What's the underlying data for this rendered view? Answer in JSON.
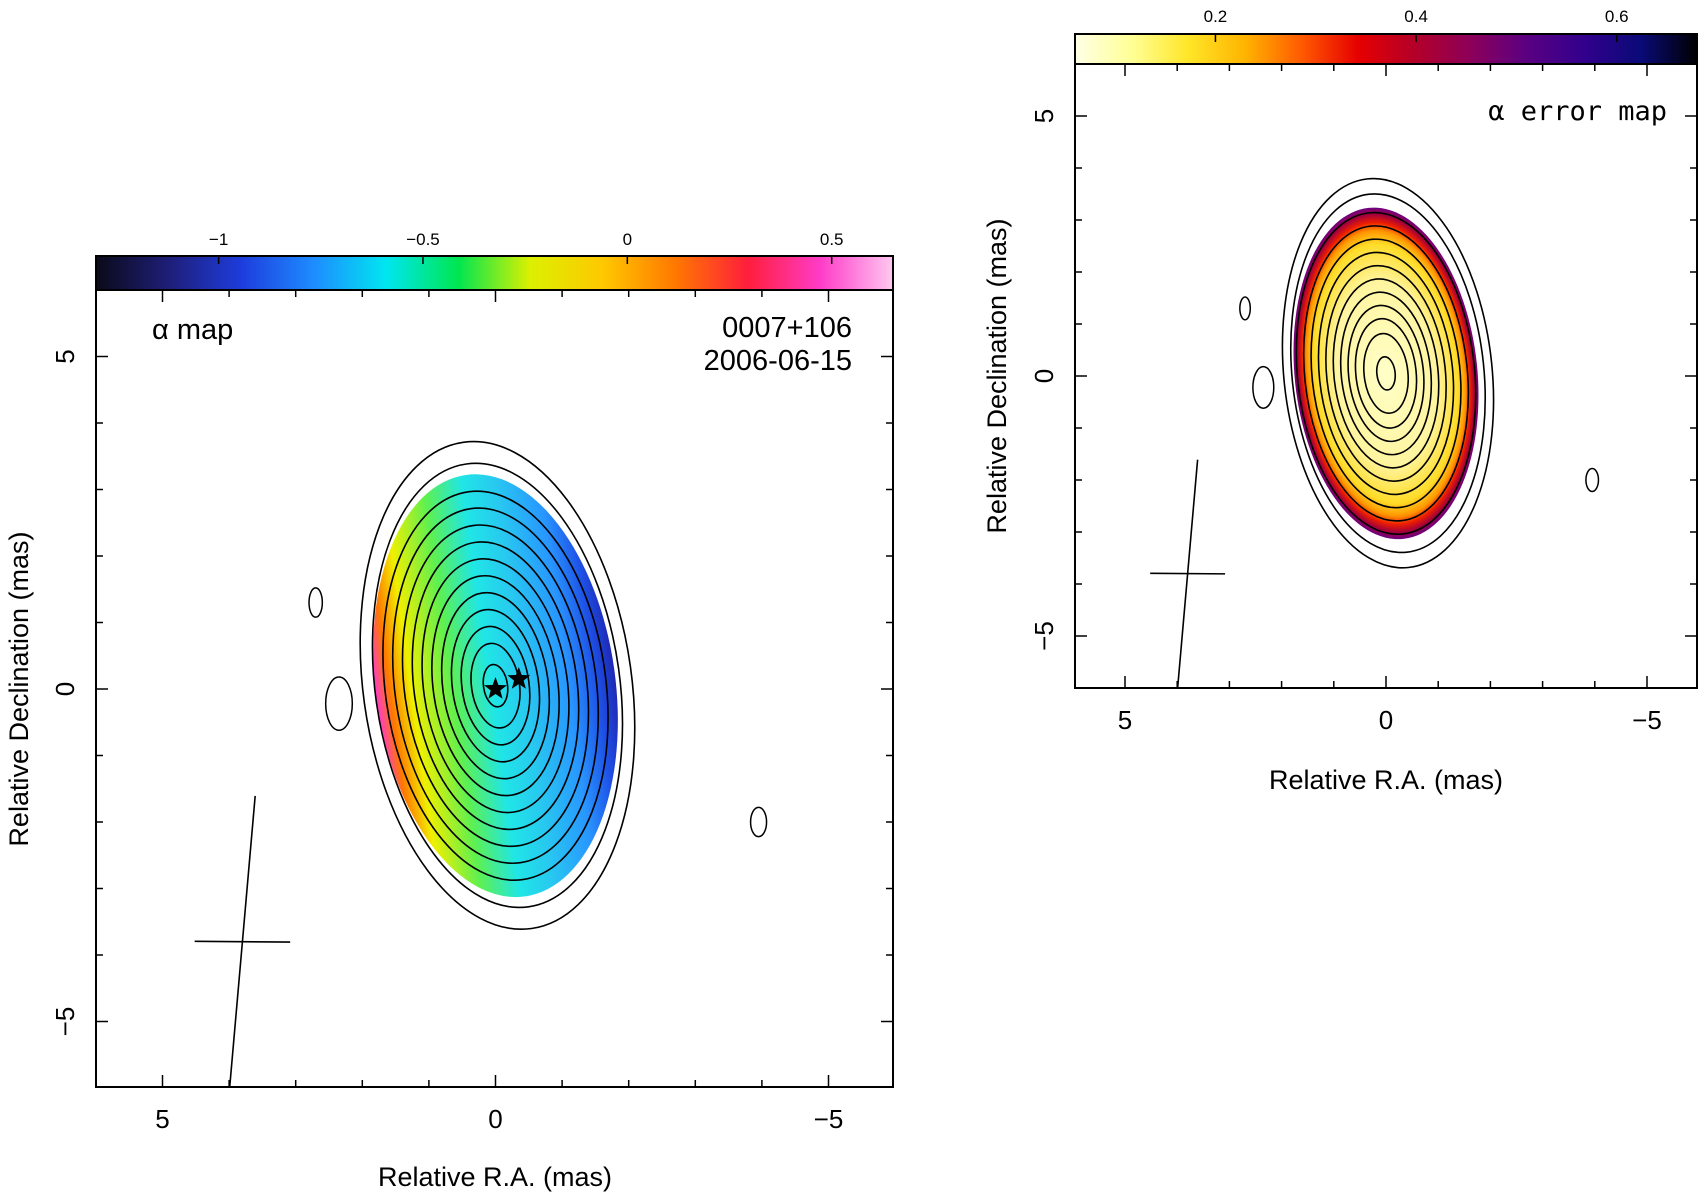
{
  "chart_data": [
    {
      "type": "heatmap",
      "title": "α map",
      "annotation_lines": [
        "0007+106",
        "2006-06-15"
      ],
      "xlabel": "Relative R.A. (mas)",
      "ylabel": "Relative Declination (mas)",
      "xlim": [
        6,
        -6
      ],
      "ylim": [
        -6,
        6.2
      ],
      "xticks": [
        5,
        0,
        -5
      ],
      "yticks": [
        5,
        0,
        -5
      ],
      "xtick_labels": [
        "5",
        "0",
        "−5"
      ],
      "ytick_labels": [
        "5",
        "0",
        "−5"
      ],
      "colorbar": {
        "range": [
          -1.3,
          0.65
        ],
        "ticks": [
          -1,
          -0.5,
          0,
          0.5
        ],
        "tick_labels": [
          "−1",
          "−0.5",
          "0",
          "0.5"
        ],
        "colormap": [
          "#0a0a1a",
          "#1e1e78",
          "#1e3cdc",
          "#1e8cff",
          "#00e6f0",
          "#00e650",
          "#dcf000",
          "#ffc800",
          "#ff7800",
          "#ff1e3c",
          "#ff3cc8",
          "#ffc8f0"
        ]
      },
      "core_markers": [
        [
          0.0,
          0.0
        ],
        [
          -0.35,
          0.15
        ]
      ],
      "source_shape": {
        "center": [
          0.0,
          0.05
        ],
        "half_width": 1.8,
        "half_height": 3.2
      },
      "beam": {
        "center": [
          3.8,
          -3.8
        ],
        "major": 2.2,
        "minor": 1.2,
        "pa_deg": -5
      },
      "grid": false
    },
    {
      "type": "heatmap",
      "title": "α error map",
      "xlabel": "Relative R.A. (mas)",
      "ylabel": "Relative Declination (mas)",
      "xlim": [
        6,
        -6
      ],
      "ylim": [
        -6,
        6.2
      ],
      "xticks": [
        5,
        0,
        -5
      ],
      "yticks": [
        5,
        0,
        -5
      ],
      "xtick_labels": [
        "5",
        "0",
        "−5"
      ],
      "ytick_labels": [
        "5",
        "0",
        "−5"
      ],
      "colorbar": {
        "range": [
          0.06,
          0.68
        ],
        "ticks": [
          0.2,
          0.4,
          0.6
        ],
        "tick_labels": [
          "0.2",
          "0.4",
          "0.6"
        ],
        "colormap": [
          "#ffffe6",
          "#ffff96",
          "#ffe628",
          "#ffb400",
          "#ff5a00",
          "#e60000",
          "#b40028",
          "#8c005a",
          "#5a0082",
          "#32008c",
          "#0a0a78",
          "#000000"
        ]
      },
      "source_shape": {
        "center": [
          0.0,
          0.05
        ],
        "half_width": 1.75,
        "half_height": 3.2
      },
      "beam": {
        "center": [
          3.8,
          -3.8
        ],
        "major": 2.2,
        "minor": 1.2,
        "pa_deg": -5
      },
      "grid": false
    }
  ]
}
